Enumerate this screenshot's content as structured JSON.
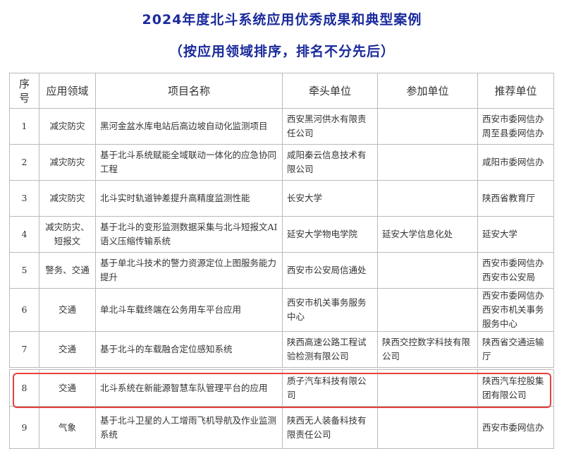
{
  "title": "2024年度北斗系统应用优秀成果和典型案例",
  "subtitle": "（按应用领域排序，排名不分先后）",
  "highlight_color": "#e8403c",
  "columns": [
    "序号",
    "应用领域",
    "项目名称",
    "牵头单位",
    "参加单位",
    "推荐单位"
  ],
  "rows": [
    {
      "no": "1",
      "field": "减灾防灾",
      "project": "黑河金盆水库电站后高边坡自动化监测项目",
      "lead": "西安黑河供水有限责任公司",
      "participant": "",
      "recommender": "西安市委网信办 周至县委网信办"
    },
    {
      "no": "2",
      "field": "减灾防灾",
      "project": "基于北斗系统赋能全域联动一体化的应急协同工程",
      "lead": "咸阳秦云信息技术有限公司",
      "participant": "",
      "recommender": "咸阳市委网信办"
    },
    {
      "no": "3",
      "field": "减灾防灾",
      "project": "北斗实时轨道钟差提升高精度监测性能",
      "lead": "长安大学",
      "participant": "",
      "recommender": "陕西省教育厅"
    },
    {
      "no": "4",
      "field": "减灾防灾、短报文",
      "project": "基于北斗的变形监测数据采集与北斗短报文AI语义压缩传输系统",
      "lead": "延安大学物电学院",
      "participant": "延安大学信息化处",
      "recommender": "延安大学"
    },
    {
      "no": "5",
      "field": "警务、交通",
      "project": "基于单北斗技术的警力资源定位上图服务能力提升",
      "lead": "西安市公安局信通处",
      "participant": "",
      "recommender": "西安市委网信办 西安市公安局"
    },
    {
      "no": "6",
      "field": "交通",
      "project": "单北斗车载终端在公务用车平台应用",
      "lead": "西安市机关事务服务中心",
      "participant": "",
      "recommender": "西安市委网信办 西安市机关事务服务中心"
    },
    {
      "no": "7",
      "field": "交通",
      "project": "基于北斗的车载融合定位感知系统",
      "lead": "陕西高速公路工程试验检测有限公司",
      "participant": "陕西交控数字科技有限公司",
      "recommender": "陕西省交通运输厅"
    },
    {
      "no": "8",
      "field": "交通",
      "project": "北斗系统在新能源智慧车队管理平台的应用",
      "lead": "质子汽车科技有限公司",
      "participant": "",
      "recommender": "陕西汽车控股集团有限公司"
    },
    {
      "no": "9",
      "field": "气象",
      "project": "基于北斗卫星的人工增雨飞机导航及作业监测系统",
      "lead": "陕西无人装备科技有限责任公司",
      "participant": "",
      "recommender": "西安市委网信办"
    }
  ]
}
